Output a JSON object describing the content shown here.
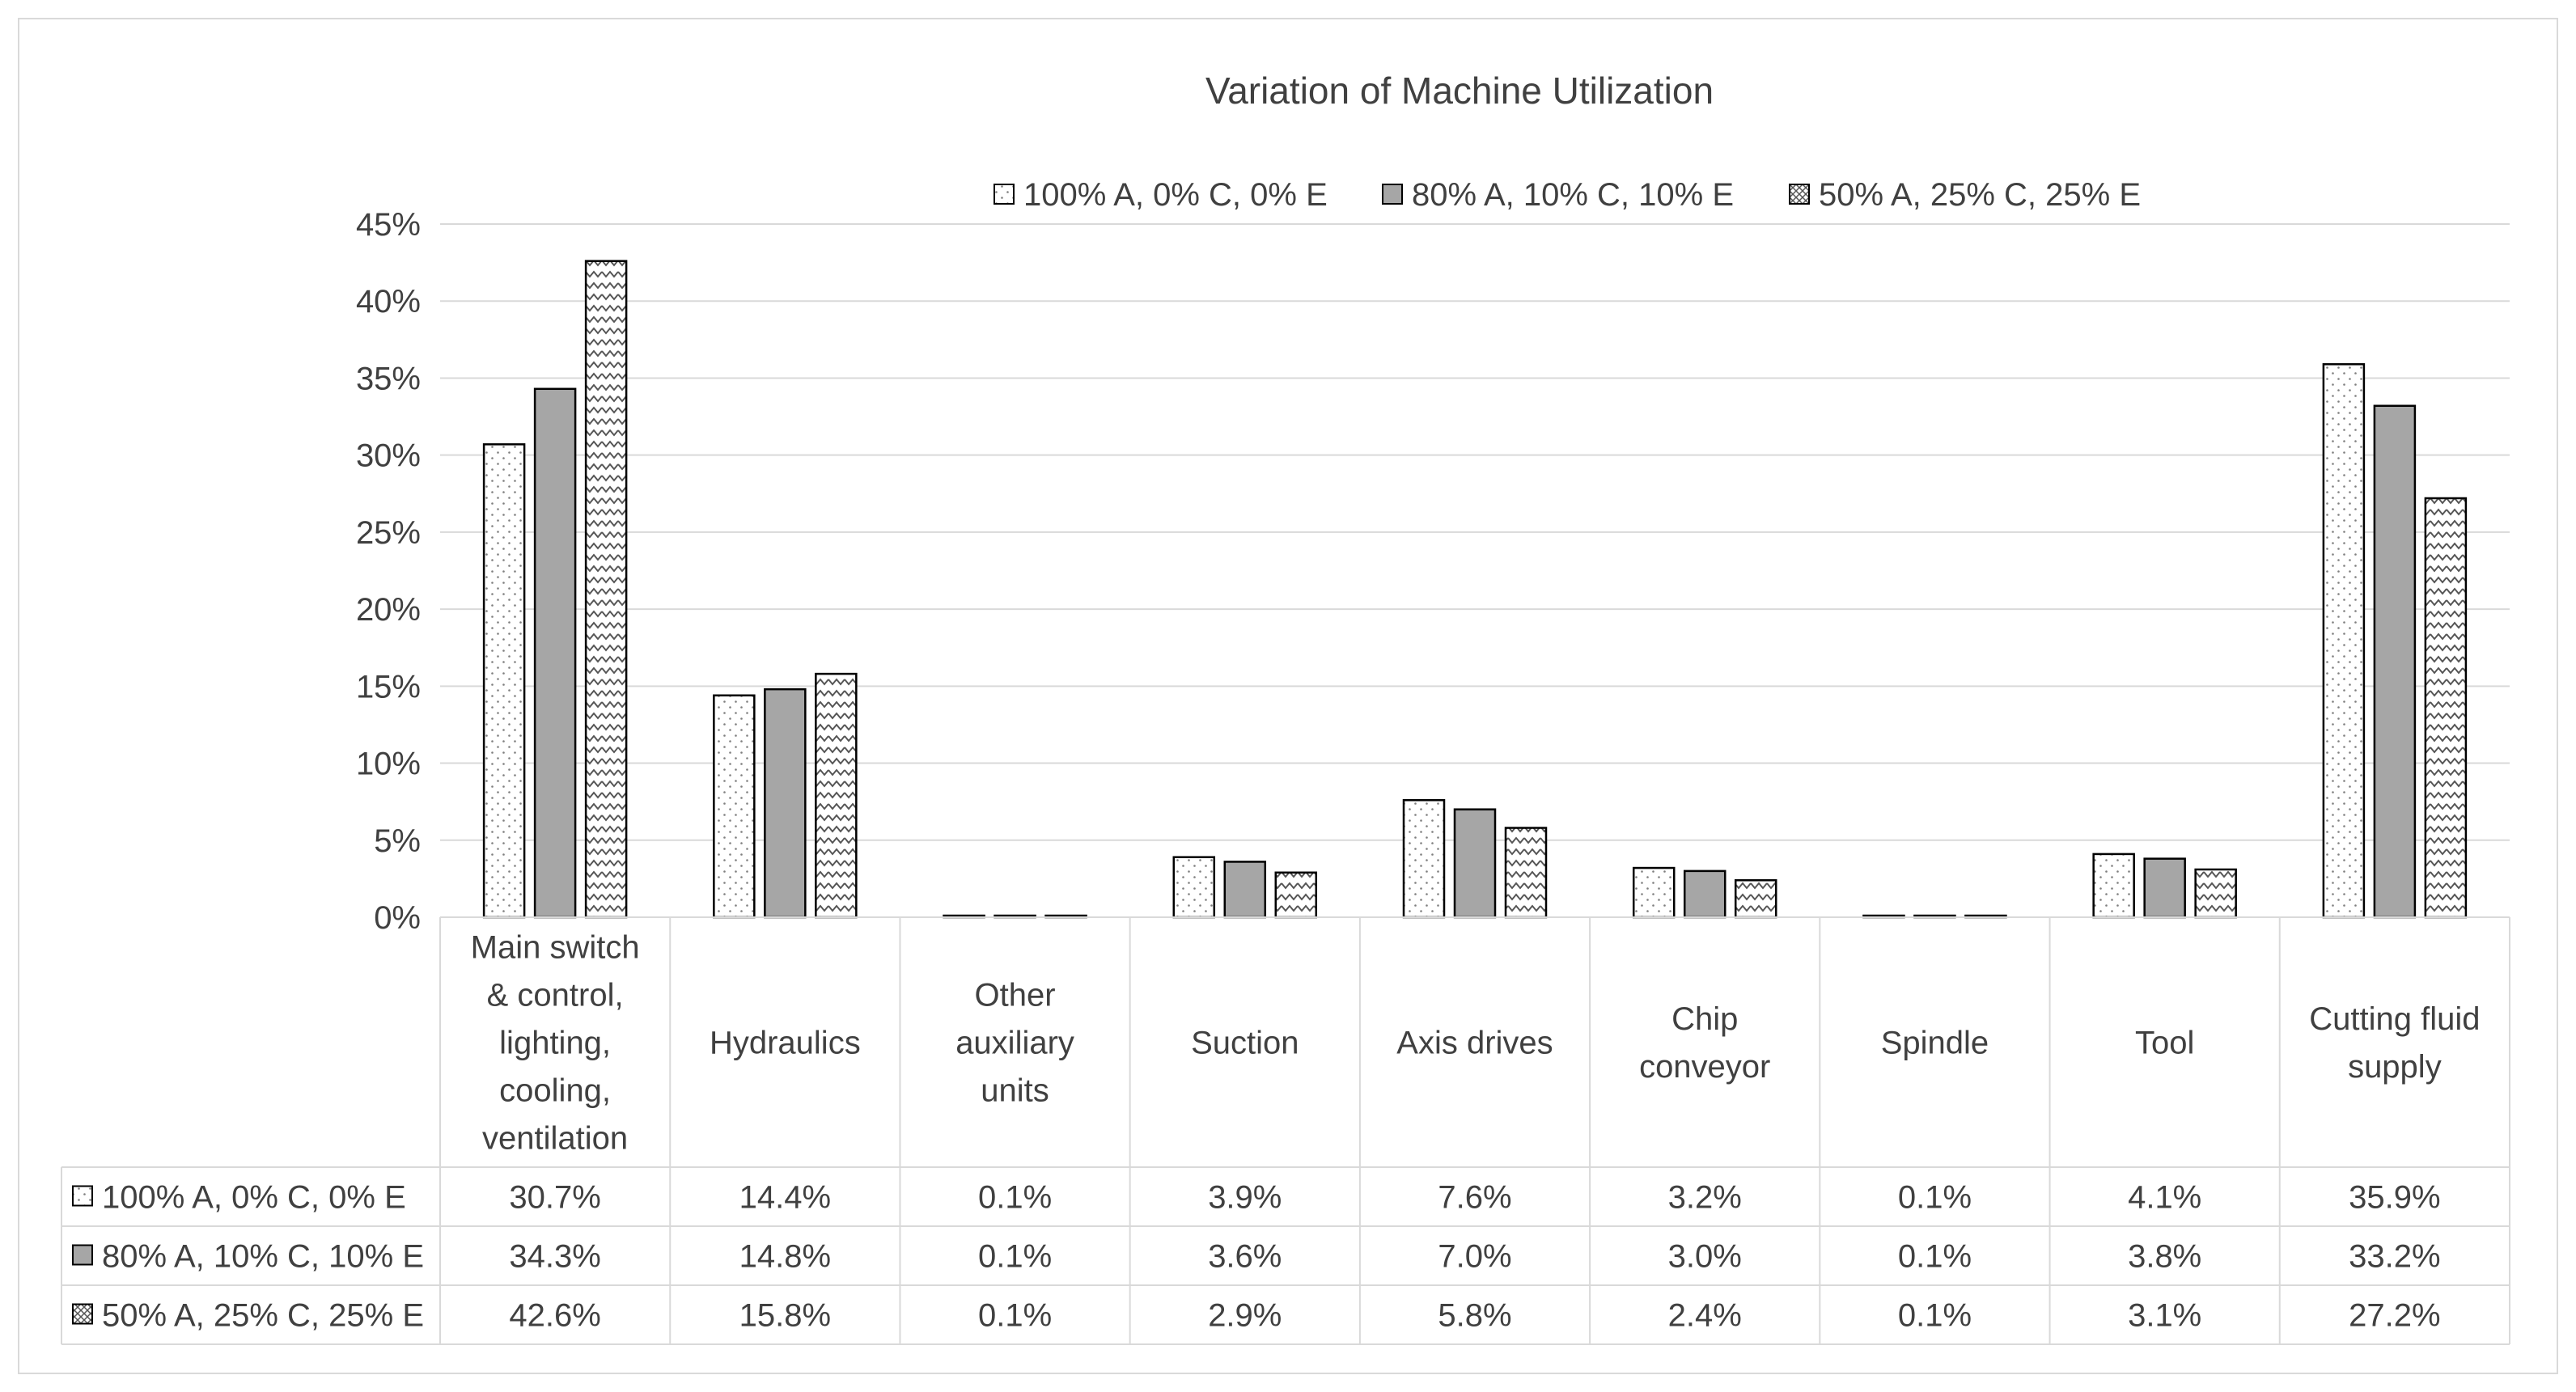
{
  "chart_data": {
    "type": "bar",
    "title": "Variation of Machine Utilization",
    "categories": [
      [
        "Main switch",
        "& control,",
        "lighting,",
        "cooling,",
        "ventilation"
      ],
      [
        "Hydraulics"
      ],
      [
        "Other",
        "auxiliary",
        "units"
      ],
      [
        "Suction"
      ],
      [
        "Axis drives"
      ],
      [
        "Chip",
        "conveyor"
      ],
      [
        "Spindle"
      ],
      [
        "Tool"
      ],
      [
        "Cutting fluid",
        "supply"
      ]
    ],
    "series": [
      {
        "name": "100% A, 0% C, 0% E",
        "values": [
          30.7,
          14.4,
          0.1,
          3.9,
          7.6,
          3.2,
          0.1,
          4.1,
          35.9
        ],
        "labels": [
          "30.7%",
          "14.4%",
          "0.1%",
          "3.9%",
          "7.6%",
          "3.2%",
          "0.1%",
          "4.1%",
          "35.9%"
        ],
        "pattern": "dots"
      },
      {
        "name": "80% A, 10% C, 10% E",
        "values": [
          34.3,
          14.8,
          0.1,
          3.6,
          7.0,
          3.0,
          0.1,
          3.8,
          33.2
        ],
        "labels": [
          "34.3%",
          "14.8%",
          "0.1%",
          "3.6%",
          "7.0%",
          "3.0%",
          "0.1%",
          "3.8%",
          "33.2%"
        ],
        "pattern": "solid"
      },
      {
        "name": "50% A, 25% C, 25% E",
        "values": [
          42.6,
          15.8,
          0.1,
          2.9,
          5.8,
          2.4,
          0.1,
          3.1,
          27.2
        ],
        "labels": [
          "42.6%",
          "15.8%",
          "0.1%",
          "2.9%",
          "5.8%",
          "2.4%",
          "0.1%",
          "3.1%",
          "27.2%"
        ],
        "pattern": "zigzag"
      }
    ],
    "yticks": [
      "0%",
      "5%",
      "10%",
      "15%",
      "20%",
      "25%",
      "30%",
      "35%",
      "40%",
      "45%"
    ],
    "ylim": [
      0,
      45
    ],
    "grid": true,
    "legend": "top-center",
    "data_table": true,
    "colors": {
      "solid_fill": "#a6a6a6",
      "bar_stroke": "#000000",
      "grid": "#d9d9d9",
      "text": "#404040"
    }
  }
}
